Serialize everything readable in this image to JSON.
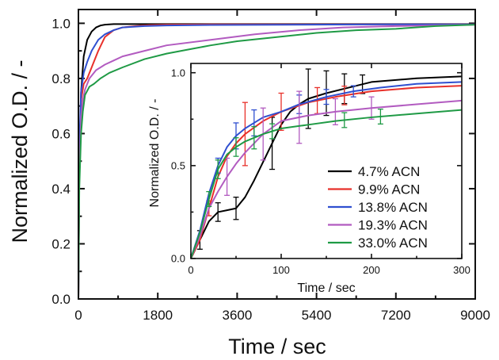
{
  "chart_data": [
    {
      "type": "line",
      "xlabel": "Time / sec",
      "ylabel": "Normalized O.D. / -",
      "xlim": [
        0,
        9000
      ],
      "ylim": [
        0,
        1.05
      ],
      "xticks": [
        0,
        1800,
        3600,
        5400,
        7200,
        9000
      ],
      "yticks": [
        0.0,
        0.2,
        0.4,
        0.6,
        0.8,
        1.0
      ],
      "xtick_labels": [
        "0",
        "1800",
        "3600",
        "5400",
        "7200",
        "9000"
      ],
      "ytick_labels": [
        "0.0",
        "0.2",
        "0.4",
        "0.6",
        "0.8",
        "1.0"
      ],
      "grid": false,
      "series": [
        {
          "name": "4.7% ACN",
          "color": "#000000",
          "x": [
            0,
            20,
            60,
            120,
            200,
            300,
            400,
            500,
            600,
            800,
            1000,
            1500,
            2000,
            4000,
            6000,
            9000
          ],
          "y": [
            0,
            0.45,
            0.75,
            0.88,
            0.94,
            0.97,
            0.985,
            0.992,
            0.995,
            0.997,
            0.997,
            0.997,
            0.997,
            0.997,
            0.997,
            0.997
          ]
        },
        {
          "name": "9.9% ACN",
          "color": "#e8302a",
          "x": [
            0,
            20,
            60,
            120,
            200,
            300,
            450,
            600,
            800,
            1000,
            1300,
            1600,
            2000,
            3000,
            5000,
            9000
          ],
          "y": [
            0,
            0.5,
            0.72,
            0.78,
            0.8,
            0.84,
            0.9,
            0.95,
            0.975,
            0.985,
            0.99,
            0.993,
            0.995,
            0.996,
            0.996,
            0.996
          ]
        },
        {
          "name": "13.8% ACN",
          "color": "#2f4fd0",
          "x": [
            0,
            20,
            60,
            120,
            200,
            300,
            450,
            600,
            800,
            1000,
            1500,
            2000,
            3000,
            5000,
            7000,
            9000
          ],
          "y": [
            0,
            0.55,
            0.75,
            0.82,
            0.86,
            0.9,
            0.94,
            0.96,
            0.975,
            0.985,
            0.99,
            0.992,
            0.994,
            0.995,
            0.996,
            0.996
          ]
        },
        {
          "name": "19.3% ACN",
          "color": "#b25bc0",
          "x": [
            0,
            20,
            60,
            100,
            150,
            250,
            400,
            600,
            800,
            1000,
            1500,
            2000,
            3000,
            4000,
            5000,
            6000,
            7200,
            9000
          ],
          "y": [
            0,
            0.45,
            0.66,
            0.72,
            0.76,
            0.8,
            0.83,
            0.85,
            0.865,
            0.88,
            0.9,
            0.92,
            0.94,
            0.96,
            0.975,
            0.985,
            0.99,
            0.995
          ]
        },
        {
          "name": "33.0% ACN",
          "color": "#1f9a45",
          "x": [
            0,
            20,
            60,
            100,
            150,
            250,
            350,
            500,
            700,
            1000,
            1500,
            2000,
            2500,
            3000,
            3600,
            4500,
            5400,
            6300,
            7200,
            8100,
            9000
          ],
          "y": [
            0,
            0.4,
            0.6,
            0.68,
            0.74,
            0.77,
            0.78,
            0.8,
            0.82,
            0.84,
            0.87,
            0.89,
            0.905,
            0.92,
            0.935,
            0.95,
            0.965,
            0.975,
            0.98,
            0.99,
            0.995
          ]
        }
      ]
    },
    {
      "type": "line",
      "inset": true,
      "xlabel": "Time / sec",
      "ylabel": "Normalized O.D. / -",
      "xlim": [
        0,
        300
      ],
      "ylim": [
        0,
        1.05
      ],
      "xticks": [
        0,
        100,
        200,
        300
      ],
      "yticks": [
        0.0,
        0.5,
        1.0
      ],
      "xtick_labels": [
        "0",
        "100",
        "200",
        "300"
      ],
      "ytick_labels": [
        "0.0",
        "0.5",
        "1.0"
      ],
      "legend_position": "bottom-right",
      "series": [
        {
          "name": "4.7% ACN",
          "color": "#000000",
          "x": [
            0,
            10,
            20,
            30,
            40,
            50,
            60,
            70,
            80,
            90,
            100,
            110,
            120,
            130,
            150,
            175,
            200,
            250,
            300
          ],
          "y": [
            0,
            0.1,
            0.2,
            0.25,
            0.26,
            0.27,
            0.33,
            0.42,
            0.52,
            0.62,
            0.72,
            0.79,
            0.83,
            0.86,
            0.89,
            0.92,
            0.95,
            0.97,
            0.98
          ],
          "error_x": [
            10,
            30,
            50,
            90,
            130,
            150,
            170,
            190
          ],
          "error_y": [
            0.05,
            0.05,
            0.06,
            0.14,
            0.16,
            0.12,
            0.08,
            0.05
          ]
        },
        {
          "name": "9.9% ACN",
          "color": "#e8302a",
          "x": [
            0,
            10,
            20,
            30,
            40,
            50,
            60,
            80,
            100,
            130,
            160,
            200,
            250,
            300
          ],
          "y": [
            0,
            0.1,
            0.27,
            0.44,
            0.55,
            0.62,
            0.67,
            0.74,
            0.79,
            0.84,
            0.87,
            0.9,
            0.92,
            0.93
          ],
          "error_x": [
            20,
            60,
            100,
            140,
            170
          ],
          "error_y": [
            0.04,
            0.17,
            0.1,
            0.07,
            0.05
          ]
        },
        {
          "name": "13.8% ACN",
          "color": "#2f4fd0",
          "x": [
            0,
            10,
            20,
            30,
            40,
            50,
            60,
            80,
            100,
            120,
            150,
            180,
            210,
            250,
            300
          ],
          "y": [
            0,
            0.15,
            0.35,
            0.5,
            0.6,
            0.66,
            0.7,
            0.76,
            0.79,
            0.83,
            0.87,
            0.9,
            0.92,
            0.94,
            0.95
          ],
          "error_x": [
            30,
            50,
            70,
            120,
            150,
            180
          ],
          "error_y": [
            0.04,
            0.07,
            0.07,
            0.05,
            0.04,
            0.03
          ]
        },
        {
          "name": "19.3% ACN",
          "color": "#b25bc0",
          "x": [
            0,
            10,
            20,
            30,
            40,
            50,
            60,
            80,
            100,
            130,
            160,
            200,
            250,
            300
          ],
          "y": [
            0,
            0.12,
            0.27,
            0.36,
            0.44,
            0.51,
            0.57,
            0.67,
            0.74,
            0.77,
            0.79,
            0.81,
            0.83,
            0.85
          ],
          "error_x": [
            40,
            80,
            120,
            160,
            200
          ],
          "error_y": [
            0.1,
            0.14,
            0.14,
            0.07,
            0.06
          ]
        },
        {
          "name": "33.0% ACN",
          "color": "#1f9a45",
          "x": [
            0,
            10,
            20,
            30,
            40,
            50,
            60,
            80,
            100,
            130,
            160,
            200,
            250,
            300
          ],
          "y": [
            0,
            0.14,
            0.32,
            0.48,
            0.56,
            0.6,
            0.63,
            0.67,
            0.7,
            0.72,
            0.74,
            0.76,
            0.78,
            0.8
          ],
          "error_x": [
            20,
            30,
            50,
            70,
            90,
            170,
            210
          ],
          "error_y": [
            0.04,
            0.05,
            0.05,
            0.06,
            0.04,
            0.04,
            0.04
          ]
        }
      ]
    }
  ]
}
